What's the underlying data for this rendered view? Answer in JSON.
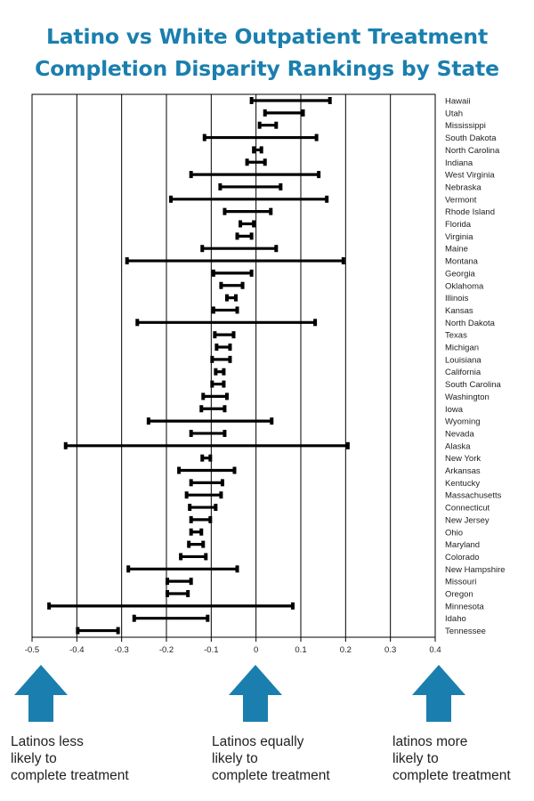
{
  "title": {
    "line1": "Latino vs White Outpatient Treatment",
    "line2": "Completion Disparity Rankings by State"
  },
  "colors": {
    "title": "#1a7fae",
    "arrow": "#1a7fae",
    "bar": "#000000",
    "grid": "#000000"
  },
  "chart_data": {
    "type": "range",
    "orientation": "horizontal",
    "xlim": [
      -0.5,
      0.4
    ],
    "xticks": [
      -0.5,
      -0.4,
      -0.3,
      -0.2,
      -0.1,
      0,
      0.1,
      0.2,
      0.3,
      0.4
    ],
    "xtick_labels": [
      "-0.5",
      "-0.4",
      "-0.3",
      "-0.2",
      "-0.1",
      "0",
      "0.1",
      "0.2",
      "0.3",
      "0.4"
    ],
    "grid": "vertical",
    "categories": [
      "Hawaii",
      "Utah",
      "Mississippi",
      "South Dakota",
      "North Carolina",
      "Indiana",
      "West Virginia",
      "Nebraska",
      "Vermont",
      "Rhode Island",
      "Florida",
      "Virginia",
      "Maine",
      "Montana",
      "Georgia",
      "Oklahoma",
      "Illinois",
      "Kansas",
      "North Dakota",
      "Texas",
      "Michigan",
      "Louisiana",
      "California",
      "South Carolina",
      "Washington",
      "Iowa",
      "Wyoming",
      "Nevada",
      "Alaska",
      "New York",
      "Arkansas",
      "Kentucky",
      "Massachusetts",
      "Connecticut",
      "New Jersey",
      "Ohio",
      "Maryland",
      "Colorado",
      "New Hampshire",
      "Missouri",
      "Oregon",
      "Minnesota",
      "Idaho",
      "Tennessee"
    ],
    "ranges": [
      [
        -0.01,
        0.165
      ],
      [
        0.02,
        0.105
      ],
      [
        0.008,
        0.045
      ],
      [
        -0.115,
        0.135
      ],
      [
        -0.005,
        0.012
      ],
      [
        -0.02,
        0.02
      ],
      [
        -0.145,
        0.14
      ],
      [
        -0.08,
        0.055
      ],
      [
        -0.19,
        0.158
      ],
      [
        -0.07,
        0.033
      ],
      [
        -0.035,
        -0.005
      ],
      [
        -0.042,
        -0.01
      ],
      [
        -0.12,
        0.045
      ],
      [
        -0.288,
        0.195
      ],
      [
        -0.095,
        -0.01
      ],
      [
        -0.078,
        -0.03
      ],
      [
        -0.065,
        -0.045
      ],
      [
        -0.095,
        -0.042
      ],
      [
        -0.265,
        0.132
      ],
      [
        -0.092,
        -0.05
      ],
      [
        -0.088,
        -0.058
      ],
      [
        -0.098,
        -0.058
      ],
      [
        -0.09,
        -0.072
      ],
      [
        -0.098,
        -0.072
      ],
      [
        -0.118,
        -0.065
      ],
      [
        -0.122,
        -0.07
      ],
      [
        -0.24,
        0.035
      ],
      [
        -0.145,
        -0.07
      ],
      [
        -0.425,
        0.205
      ],
      [
        -0.12,
        -0.102
      ],
      [
        -0.172,
        -0.048
      ],
      [
        -0.145,
        -0.075
      ],
      [
        -0.155,
        -0.078
      ],
      [
        -0.148,
        -0.09
      ],
      [
        -0.145,
        -0.102
      ],
      [
        -0.145,
        -0.122
      ],
      [
        -0.15,
        -0.118
      ],
      [
        -0.168,
        -0.112
      ],
      [
        -0.285,
        -0.042
      ],
      [
        -0.198,
        -0.145
      ],
      [
        -0.198,
        -0.152
      ],
      [
        -0.462,
        0.082
      ],
      [
        -0.272,
        -0.108
      ],
      [
        -0.398,
        -0.308
      ]
    ]
  },
  "annotations": {
    "left": {
      "line1": "Latinos less",
      "line2": "likely to",
      "line3": "complete treatment"
    },
    "middle": {
      "line1": "Latinos equally",
      "line2": "likely to",
      "line3": "complete treatment"
    },
    "right": {
      "line1": "latinos more",
      "line2": "likely to",
      "line3": "complete treatment"
    }
  }
}
